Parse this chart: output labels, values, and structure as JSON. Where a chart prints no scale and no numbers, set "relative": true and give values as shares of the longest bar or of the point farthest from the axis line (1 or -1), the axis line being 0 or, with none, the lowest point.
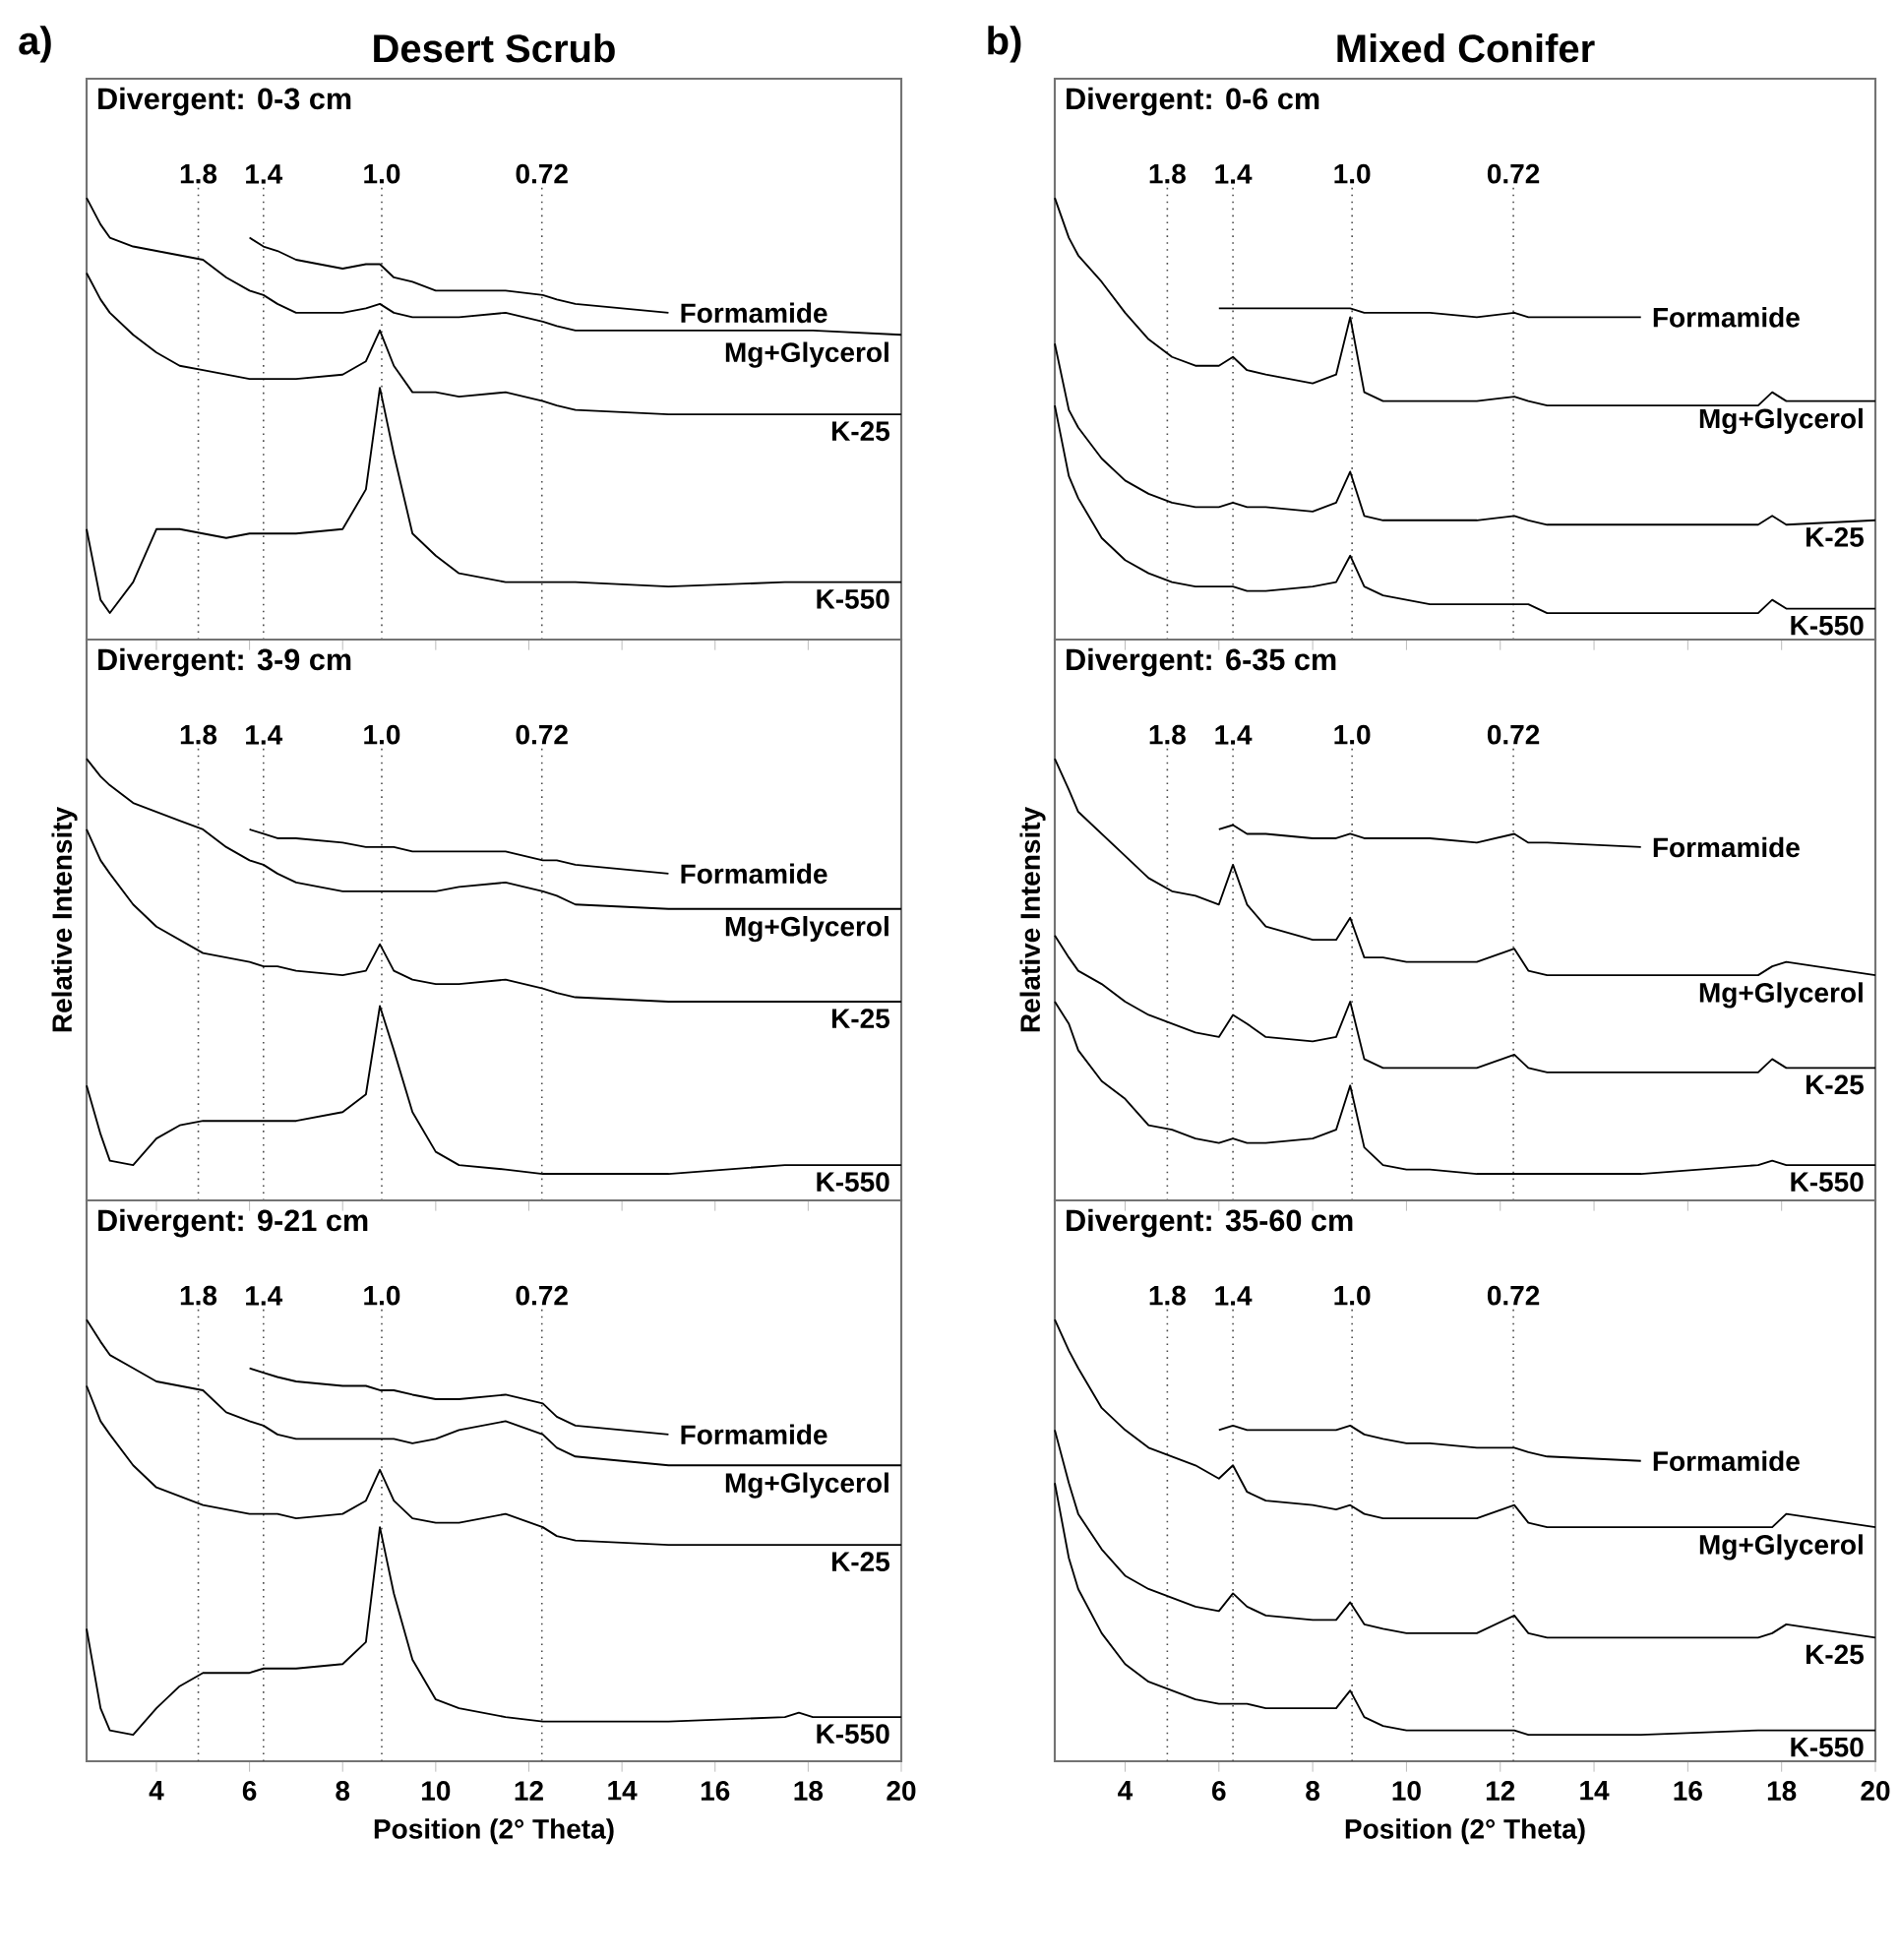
{
  "chart_data": [
    {
      "type": "line",
      "title": "Divergent: 0-3 cm",
      "annotations": [
        "a)",
        "Desert Scrub",
        "1.8",
        "1.4",
        "1.0",
        "0.72"
      ],
      "relative": true,
      "tick_labels": false,
      "xlim": [
        2.5,
        20
      ],
      "xticks": [
        4,
        6,
        8,
        10,
        12,
        14,
        16,
        18,
        20
      ],
      "x": [
        2.5,
        2.8,
        3,
        3.5,
        4,
        4.5,
        5,
        5.5,
        6,
        6.3,
        6.6,
        7,
        8,
        8.5,
        8.8,
        9.1,
        9.5,
        10,
        10.5,
        11.5,
        12.3,
        12.6,
        13,
        15,
        17.5,
        17.8,
        18.1,
        20
      ],
      "series": [
        {
          "name": "Formamide",
          "color": "#000000",
          "values": [
            null,
            null,
            null,
            null,
            null,
            null,
            null,
            null,
            0.91,
            0.89,
            0.88,
            0.86,
            0.84,
            0.85,
            0.85,
            0.82,
            0.81,
            0.79,
            0.79,
            0.79,
            0.78,
            0.77,
            0.76,
            0.74,
            null,
            null,
            null,
            null
          ]
        },
        {
          "name": "Mg+Glycerol",
          "color": "#000000",
          "values": [
            1,
            0.94,
            0.91,
            0.89,
            0.88,
            0.87,
            0.86,
            0.82,
            0.79,
            0.78,
            0.76,
            0.74,
            0.74,
            0.75,
            0.76,
            0.74,
            0.73,
            0.73,
            0.73,
            0.74,
            0.72,
            0.71,
            0.7,
            0.7,
            0.7,
            0.7,
            0.7,
            0.69
          ]
        },
        {
          "name": "K-25",
          "color": "#000000",
          "values": [
            0.83,
            0.77,
            0.74,
            0.69,
            0.65,
            0.62,
            0.61,
            0.6,
            0.59,
            0.59,
            0.59,
            0.59,
            0.6,
            0.63,
            0.7,
            0.62,
            0.56,
            0.56,
            0.55,
            0.56,
            0.54,
            0.53,
            0.52,
            0.51,
            0.51,
            0.51,
            0.51,
            0.51
          ]
        },
        {
          "name": "K-550",
          "color": "#000000",
          "values": [
            0.25,
            0.09,
            0.06,
            0.13,
            0.25,
            0.25,
            0.24,
            0.23,
            0.24,
            0.24,
            0.24,
            0.24,
            0.25,
            0.34,
            0.57,
            0.42,
            0.24,
            0.19,
            0.15,
            0.13,
            0.13,
            0.13,
            0.13,
            0.12,
            0.13,
            0.13,
            0.13,
            0.13
          ]
        }
      ],
      "ref_lines": [
        {
          "axis": "x",
          "value": 4.9,
          "line_style": "dotted"
        },
        {
          "axis": "x",
          "value": 6.3,
          "line_style": "dotted"
        },
        {
          "axis": "x",
          "value": 8.84,
          "line_style": "dotted"
        },
        {
          "axis": "x",
          "value": 12.28,
          "line_style": "dotted"
        }
      ]
    },
    {
      "type": "line",
      "title": "Divergent: 3-9 cm",
      "ylabel": "Relative Intensity",
      "annotations": [
        "1.8",
        "1.4",
        "1.0",
        "0.72"
      ],
      "relative": true,
      "tick_labels": false,
      "xlim": [
        2.5,
        20
      ],
      "xticks": [
        4,
        6,
        8,
        10,
        12,
        14,
        16,
        18,
        20
      ],
      "x": [
        2.5,
        2.8,
        3,
        3.5,
        4,
        4.5,
        5,
        5.5,
        6,
        6.3,
        6.6,
        7,
        8,
        8.5,
        8.8,
        9.1,
        9.5,
        10,
        10.5,
        11.5,
        12.3,
        12.6,
        13,
        15,
        17.5,
        17.8,
        18.1,
        20
      ],
      "series": [
        {
          "name": "Formamide",
          "color": "#000000",
          "values": [
            null,
            null,
            null,
            null,
            null,
            null,
            null,
            null,
            0.84,
            0.83,
            0.82,
            0.82,
            0.81,
            0.8,
            0.8,
            0.8,
            0.79,
            0.79,
            0.79,
            0.79,
            0.77,
            0.77,
            0.76,
            0.74,
            null,
            null,
            null,
            null
          ]
        },
        {
          "name": "Mg+Glycerol",
          "color": "#000000",
          "values": [
            1,
            0.96,
            0.94,
            0.9,
            0.88,
            0.86,
            0.84,
            0.8,
            0.77,
            0.76,
            0.74,
            0.72,
            0.7,
            0.7,
            0.7,
            0.7,
            0.7,
            0.7,
            0.71,
            0.72,
            0.7,
            0.69,
            0.67,
            0.66,
            0.66,
            0.66,
            0.66,
            0.66
          ]
        },
        {
          "name": "K-25",
          "color": "#000000",
          "values": [
            0.84,
            0.77,
            0.74,
            0.67,
            0.62,
            0.59,
            0.56,
            0.55,
            0.54,
            0.53,
            0.53,
            0.52,
            0.51,
            0.52,
            0.58,
            0.52,
            0.5,
            0.49,
            0.49,
            0.5,
            0.48,
            0.47,
            0.46,
            0.45,
            0.45,
            0.45,
            0.45,
            0.45
          ]
        },
        {
          "name": "K-550",
          "color": "#000000",
          "values": [
            0.26,
            0.15,
            0.09,
            0.08,
            0.14,
            0.17,
            0.18,
            0.18,
            0.18,
            0.18,
            0.18,
            0.18,
            0.2,
            0.24,
            0.44,
            0.34,
            0.2,
            0.11,
            0.08,
            0.07,
            0.06,
            0.06,
            0.06,
            0.06,
            0.08,
            0.08,
            0.08,
            0.08
          ]
        }
      ],
      "ref_lines": [
        {
          "axis": "x",
          "value": 4.9,
          "line_style": "dotted"
        },
        {
          "axis": "x",
          "value": 6.3,
          "line_style": "dotted"
        },
        {
          "axis": "x",
          "value": 8.84,
          "line_style": "dotted"
        },
        {
          "axis": "x",
          "value": 12.28,
          "line_style": "dotted"
        }
      ]
    },
    {
      "type": "line",
      "title": "Divergent: 9-21 cm",
      "xlabel": "Position (2° Theta)",
      "annotations": [
        "1.8",
        "1.4",
        "1.0",
        "0.72"
      ],
      "relative": true,
      "tick_labels": "x",
      "xlim": [
        2.5,
        20
      ],
      "xticks": [
        4,
        6,
        8,
        10,
        12,
        14,
        16,
        18,
        20
      ],
      "x": [
        2.5,
        2.8,
        3,
        3.5,
        4,
        4.5,
        5,
        5.5,
        6,
        6.3,
        6.6,
        7,
        8,
        8.5,
        8.8,
        9.1,
        9.5,
        10,
        10.5,
        11.5,
        12.3,
        12.6,
        13,
        15,
        17.5,
        17.8,
        18.1,
        20
      ],
      "series": [
        {
          "name": "Formamide",
          "color": "#000000",
          "values": [
            null,
            null,
            null,
            null,
            null,
            null,
            null,
            null,
            0.89,
            0.88,
            0.87,
            0.86,
            0.85,
            0.85,
            0.84,
            0.84,
            0.83,
            0.82,
            0.82,
            0.83,
            0.81,
            0.78,
            0.76,
            0.74,
            null,
            null,
            null,
            null
          ]
        },
        {
          "name": "Mg+Glycerol",
          "color": "#000000",
          "values": [
            1,
            0.95,
            0.92,
            0.89,
            0.86,
            0.85,
            0.84,
            0.79,
            0.77,
            0.76,
            0.74,
            0.73,
            0.73,
            0.73,
            0.73,
            0.73,
            0.72,
            0.73,
            0.75,
            0.77,
            0.74,
            0.71,
            0.69,
            0.67,
            0.67,
            0.67,
            0.67,
            0.67
          ]
        },
        {
          "name": "K-25",
          "color": "#000000",
          "values": [
            0.85,
            0.77,
            0.74,
            0.67,
            0.62,
            0.6,
            0.58,
            0.57,
            0.56,
            0.56,
            0.56,
            0.55,
            0.56,
            0.59,
            0.66,
            0.59,
            0.55,
            0.54,
            0.54,
            0.56,
            0.53,
            0.51,
            0.5,
            0.49,
            0.49,
            0.49,
            0.49,
            0.49
          ]
        },
        {
          "name": "K-550",
          "color": "#000000",
          "values": [
            0.3,
            0.12,
            0.07,
            0.06,
            0.12,
            0.17,
            0.2,
            0.2,
            0.2,
            0.21,
            0.21,
            0.21,
            0.22,
            0.27,
            0.53,
            0.38,
            0.23,
            0.14,
            0.12,
            0.1,
            0.09,
            0.09,
            0.09,
            0.09,
            0.1,
            0.11,
            0.1,
            0.1
          ]
        }
      ],
      "ref_lines": [
        {
          "axis": "x",
          "value": 4.9,
          "line_style": "dotted"
        },
        {
          "axis": "x",
          "value": 6.3,
          "line_style": "dotted"
        },
        {
          "axis": "x",
          "value": 8.84,
          "line_style": "dotted"
        },
        {
          "axis": "x",
          "value": 12.28,
          "line_style": "dotted"
        }
      ]
    },
    {
      "type": "line",
      "title": "Divergent: 0-6 cm",
      "annotations": [
        "b)",
        "Mixed Conifer",
        "1.8",
        "1.4",
        "1.0",
        "0.72"
      ],
      "relative": true,
      "tick_labels": false,
      "xlim": [
        2.5,
        20
      ],
      "xticks": [
        4,
        6,
        8,
        10,
        12,
        14,
        16,
        18,
        20
      ],
      "x": [
        2.5,
        2.8,
        3,
        3.5,
        4,
        4.5,
        5,
        5.5,
        6,
        6.3,
        6.6,
        7,
        8,
        8.5,
        8.8,
        9.1,
        9.5,
        10,
        10.5,
        11.5,
        12.3,
        12.6,
        13,
        15,
        17.5,
        17.8,
        18.1,
        20
      ],
      "series": [
        {
          "name": "Formamide",
          "color": "#000000",
          "values": [
            null,
            null,
            null,
            null,
            null,
            null,
            null,
            null,
            0.75,
            0.75,
            0.75,
            0.75,
            0.75,
            0.75,
            0.75,
            0.74,
            0.74,
            0.74,
            0.74,
            0.73,
            0.74,
            0.73,
            0.73,
            0.73,
            null,
            null,
            null,
            null
          ]
        },
        {
          "name": "Mg+Glycerol",
          "color": "#000000",
          "values": [
            1,
            0.91,
            0.87,
            0.81,
            0.74,
            0.68,
            0.64,
            0.62,
            0.62,
            0.64,
            0.61,
            0.6,
            0.58,
            0.6,
            0.73,
            0.56,
            0.54,
            0.54,
            0.54,
            0.54,
            0.55,
            0.54,
            0.53,
            0.53,
            0.53,
            0.56,
            0.54,
            0.54
          ]
        },
        {
          "name": "K-25",
          "color": "#000000",
          "values": [
            0.67,
            0.52,
            0.48,
            0.41,
            0.36,
            0.33,
            0.31,
            0.3,
            0.3,
            0.31,
            0.3,
            0.3,
            0.29,
            0.31,
            0.38,
            0.28,
            0.27,
            0.27,
            0.27,
            0.27,
            0.28,
            0.27,
            0.26,
            0.26,
            0.26,
            0.28,
            0.26,
            0.27
          ]
        },
        {
          "name": "K-550",
          "color": "#000000",
          "values": [
            0.53,
            0.37,
            0.32,
            0.23,
            0.18,
            0.15,
            0.13,
            0.12,
            0.12,
            0.12,
            0.11,
            0.11,
            0.12,
            0.13,
            0.19,
            0.12,
            0.1,
            0.09,
            0.08,
            0.08,
            0.08,
            0.08,
            0.06,
            0.06,
            0.06,
            0.09,
            0.07,
            0.07
          ]
        }
      ],
      "ref_lines": [
        {
          "axis": "x",
          "value": 4.9,
          "line_style": "dotted"
        },
        {
          "axis": "x",
          "value": 6.3,
          "line_style": "dotted"
        },
        {
          "axis": "x",
          "value": 8.84,
          "line_style": "dotted"
        },
        {
          "axis": "x",
          "value": 12.28,
          "line_style": "dotted"
        }
      ]
    },
    {
      "type": "line",
      "title": "Divergent: 6-35 cm",
      "ylabel": "Relative Intensity",
      "annotations": [
        "1.8",
        "1.4",
        "1.0",
        "0.72"
      ],
      "relative": true,
      "tick_labels": false,
      "xlim": [
        2.5,
        20
      ],
      "xticks": [
        4,
        6,
        8,
        10,
        12,
        14,
        16,
        18,
        20
      ],
      "x": [
        2.5,
        2.8,
        3,
        3.5,
        4,
        4.5,
        5,
        5.5,
        6,
        6.3,
        6.6,
        7,
        8,
        8.5,
        8.8,
        9.1,
        9.5,
        10,
        10.5,
        11.5,
        12.3,
        12.6,
        13,
        15,
        17.5,
        17.8,
        18.1,
        20
      ],
      "series": [
        {
          "name": "Formamide",
          "color": "#000000",
          "values": [
            null,
            null,
            null,
            null,
            null,
            null,
            null,
            null,
            0.84,
            0.85,
            0.83,
            0.83,
            0.82,
            0.82,
            0.83,
            0.82,
            0.82,
            0.82,
            0.82,
            0.81,
            0.83,
            0.81,
            0.81,
            0.8,
            null,
            null,
            null,
            null
          ]
        },
        {
          "name": "Mg+Glycerol",
          "color": "#000000",
          "values": [
            1,
            0.93,
            0.88,
            0.83,
            0.78,
            0.73,
            0.7,
            0.69,
            0.67,
            0.76,
            0.67,
            0.62,
            0.59,
            0.59,
            0.64,
            0.55,
            0.55,
            0.54,
            0.54,
            0.54,
            0.57,
            0.52,
            0.51,
            0.51,
            0.51,
            0.53,
            0.54,
            0.51
          ]
        },
        {
          "name": "K-25",
          "color": "#000000",
          "values": [
            0.6,
            0.55,
            0.52,
            0.49,
            0.45,
            0.42,
            0.4,
            0.38,
            0.37,
            0.42,
            0.4,
            0.37,
            0.36,
            0.37,
            0.45,
            0.32,
            0.3,
            0.3,
            0.3,
            0.3,
            0.33,
            0.3,
            0.29,
            0.29,
            0.29,
            0.32,
            0.3,
            0.3
          ]
        },
        {
          "name": "K-550",
          "color": "#000000",
          "values": [
            0.45,
            0.4,
            0.34,
            0.27,
            0.23,
            0.17,
            0.16,
            0.14,
            0.13,
            0.14,
            0.13,
            0.13,
            0.14,
            0.16,
            0.26,
            0.12,
            0.08,
            0.07,
            0.07,
            0.06,
            0.06,
            0.06,
            0.06,
            0.06,
            0.08,
            0.09,
            0.08,
            0.08
          ]
        }
      ],
      "ref_lines": [
        {
          "axis": "x",
          "value": 4.9,
          "line_style": "dotted"
        },
        {
          "axis": "x",
          "value": 6.3,
          "line_style": "dotted"
        },
        {
          "axis": "x",
          "value": 8.84,
          "line_style": "dotted"
        },
        {
          "axis": "x",
          "value": 12.28,
          "line_style": "dotted"
        }
      ]
    },
    {
      "type": "line",
      "title": "Divergent: 35-60 cm",
      "xlabel": "Position (2° Theta)",
      "annotations": [
        "1.8",
        "1.4",
        "1.0",
        "0.72"
      ],
      "relative": true,
      "tick_labels": "x",
      "xlim": [
        2.5,
        20
      ],
      "xticks": [
        4,
        6,
        8,
        10,
        12,
        14,
        16,
        18,
        20
      ],
      "x": [
        2.5,
        2.8,
        3,
        3.5,
        4,
        4.5,
        5,
        5.5,
        6,
        6.3,
        6.6,
        7,
        8,
        8.5,
        8.8,
        9.1,
        9.5,
        10,
        10.5,
        11.5,
        12.3,
        12.6,
        13,
        15,
        17.5,
        17.8,
        18.1,
        20
      ],
      "series": [
        {
          "name": "Formamide",
          "color": "#000000",
          "values": [
            null,
            null,
            null,
            null,
            null,
            null,
            null,
            null,
            0.75,
            0.76,
            0.75,
            0.75,
            0.75,
            0.75,
            0.76,
            0.74,
            0.73,
            0.72,
            0.72,
            0.71,
            0.71,
            0.7,
            0.69,
            0.68,
            null,
            null,
            null,
            null
          ]
        },
        {
          "name": "Mg+Glycerol",
          "color": "#000000",
          "values": [
            1,
            0.93,
            0.89,
            0.8,
            0.75,
            0.71,
            0.69,
            0.67,
            0.64,
            0.67,
            0.61,
            0.59,
            0.58,
            0.57,
            0.58,
            0.56,
            0.55,
            0.55,
            0.55,
            0.55,
            0.58,
            0.54,
            0.53,
            0.53,
            0.53,
            0.53,
            0.56,
            0.53
          ]
        },
        {
          "name": "K-25",
          "color": "#000000",
          "values": [
            0.75,
            0.63,
            0.56,
            0.48,
            0.42,
            0.39,
            0.37,
            0.35,
            0.34,
            0.38,
            0.35,
            0.33,
            0.32,
            0.32,
            0.36,
            0.31,
            0.3,
            0.29,
            0.29,
            0.29,
            0.33,
            0.29,
            0.28,
            0.28,
            0.28,
            0.29,
            0.31,
            0.28
          ]
        },
        {
          "name": "K-550",
          "color": "#000000",
          "values": [
            0.63,
            0.46,
            0.39,
            0.29,
            0.22,
            0.18,
            0.16,
            0.14,
            0.13,
            0.13,
            0.13,
            0.12,
            0.12,
            0.12,
            0.16,
            0.1,
            0.08,
            0.07,
            0.07,
            0.07,
            0.07,
            0.06,
            0.06,
            0.06,
            0.07,
            0.07,
            0.07,
            0.07
          ]
        }
      ],
      "ref_lines": [
        {
          "axis": "x",
          "value": 4.9,
          "line_style": "dotted"
        },
        {
          "axis": "x",
          "value": 6.3,
          "line_style": "dotted"
        },
        {
          "axis": "x",
          "value": 8.84,
          "line_style": "dotted"
        },
        {
          "axis": "x",
          "value": 12.28,
          "line_style": "dotted"
        }
      ]
    }
  ]
}
